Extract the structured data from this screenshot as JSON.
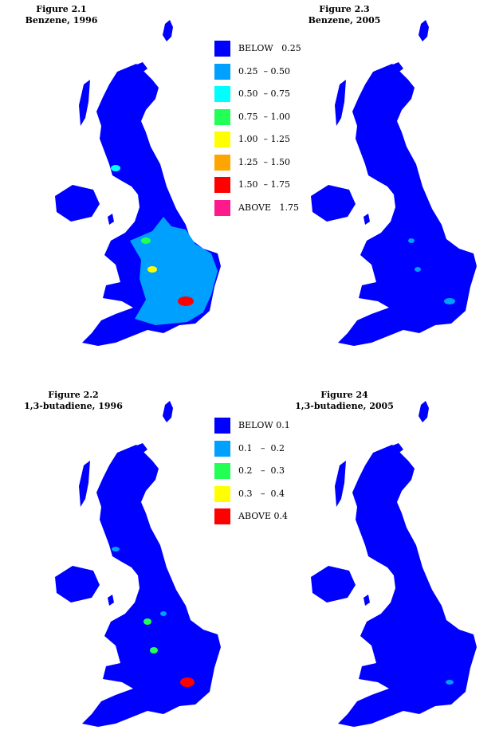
{
  "figures": [
    {
      "title": "Figure 2.1",
      "subtitle": "Benzene, 1996"
    },
    {
      "title": "Figure 2.3",
      "subtitle": "Benzene, 2005"
    },
    {
      "title": "Figure 2.2",
      "subtitle": "1,3-butadiene, 1996"
    },
    {
      "title": "Figure 24",
      "subtitle": "1,3-butadiene, 2005"
    }
  ],
  "benzene_legend": [
    {
      "label": "BELOW   0.25",
      "color": "#0000ff"
    },
    {
      "label": "0.25  – 0.50",
      "color": "#00a0ff"
    },
    {
      "label": "0.50  – 0.75",
      "color": "#00ffff"
    },
    {
      "label": "0.75  – 1.00",
      "color": "#22ff55"
    },
    {
      "label": "1.00  – 1.25",
      "color": "#ffff00"
    },
    {
      "label": "1.25  – 1.50",
      "color": "#ffa500"
    },
    {
      "label": "1.50  – 1.75",
      "color": "#ff0000"
    },
    {
      "label": "ABOVE   1.75",
      "color": "#ff1a8c"
    }
  ],
  "butadiene_legend": [
    {
      "label": "BELOW 0.1",
      "color": "#0000ff"
    },
    {
      "label": "0.1   –  0.2",
      "color": "#00a0ff"
    },
    {
      "label": "0.2   –  0.3",
      "color": "#22ff55"
    },
    {
      "label": "0.3   –  0.4",
      "color": "#ffff00"
    },
    {
      "label": "ABOVE 0.4",
      "color": "#ff0000"
    }
  ]
}
